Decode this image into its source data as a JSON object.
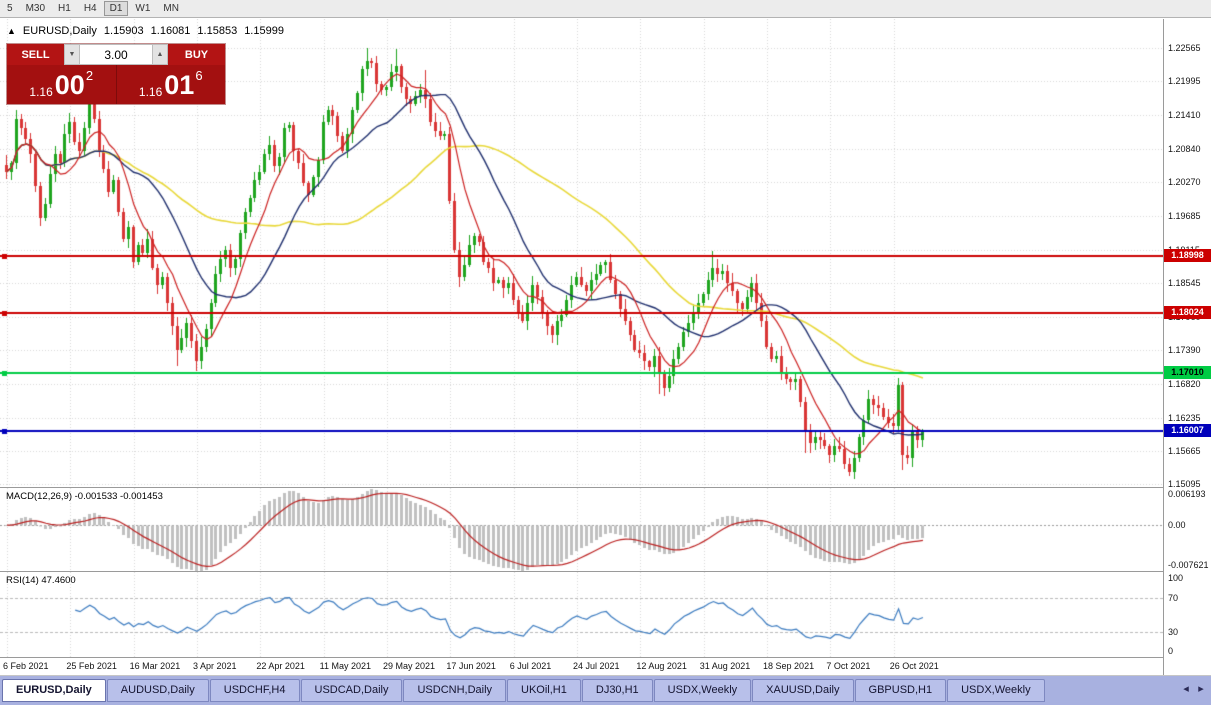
{
  "window": {
    "icon": "▲"
  },
  "toolbar": {
    "periods": [
      {
        "label": "5"
      },
      {
        "label": "M30"
      },
      {
        "label": "H1"
      },
      {
        "label": "H4"
      },
      {
        "label": "D1",
        "active": true
      },
      {
        "label": "W1"
      },
      {
        "label": "MN"
      }
    ]
  },
  "chart": {
    "symbol": "EURUSD,Daily",
    "open": "1.15903",
    "high": "1.16081",
    "low": "1.15853",
    "close": "1.15999"
  },
  "trade_panel": {
    "sell_label": "SELL",
    "buy_label": "BUY",
    "volume": "3.00",
    "volume_down_icon": "▼",
    "volume_up_icon": "▲",
    "sell_price": {
      "prefix": "1.16",
      "big": "00",
      "sup": "2"
    },
    "buy_price": {
      "prefix": "1.16",
      "big": "01",
      "sup": "6"
    }
  },
  "panels": {
    "macd_label": "MACD(12,26,9) -0.001533 -0.001453",
    "macd_axis": [
      "0.006193",
      "0.00",
      "-0.007621"
    ],
    "rsi_label": "RSI(14) 47.4600",
    "rsi_axis": [
      "100",
      "70",
      "30",
      "0"
    ]
  },
  "bottom_tabs": {
    "active_index": 0,
    "scroll_left_icon": "◂",
    "scroll_right_icon": "▸",
    "tabs": [
      "EURUSD,Daily",
      "AUDUSD,Daily",
      "USDCHF,H4",
      "USDCAD,Daily",
      "USDCNH,Daily",
      "UKOil,H1",
      "DJ30,H1",
      "USDX,Weekly",
      "XAUUSD,Daily",
      "GBPUSD,H1",
      "USDX,Weekly"
    ]
  },
  "chart_data": {
    "type": "candlestick",
    "symbol": "EURUSD",
    "timeframe": "Daily",
    "y_ticks": [
      "1.22565",
      "1.21995",
      "1.21410",
      "1.20840",
      "1.20270",
      "1.19685",
      "1.19115",
      "1.18545",
      "1.17960",
      "1.17390",
      "1.16820",
      "1.16235",
      "1.15665",
      "1.15095"
    ],
    "x_ticks": [
      "6 Feb 2021",
      "25 Feb 2021",
      "16 Mar 2021",
      "3 Apr 2021",
      "22 Apr 2021",
      "11 May 2021",
      "29 May 2021",
      "17 Jun 2021",
      "6 Jul 2021",
      "24 Jul 2021",
      "12 Aug 2021",
      "31 Aug 2021",
      "18 Sep 2021",
      "7 Oct 2021",
      "26 Oct 2021"
    ],
    "x_tick_step": 13,
    "price_range": [
      1.15051,
      1.23061
    ],
    "closes": [
      1.2045,
      1.206,
      1.2135,
      1.212,
      1.21,
      1.2075,
      1.202,
      1.1965,
      1.199,
      1.204,
      1.2075,
      1.206,
      1.211,
      1.213,
      1.2095,
      1.208,
      1.212,
      1.216,
      1.2135,
      1.208,
      1.205,
      1.201,
      1.203,
      1.1975,
      1.193,
      1.195,
      1.189,
      1.192,
      1.1905,
      1.193,
      1.188,
      1.185,
      1.1865,
      1.182,
      1.178,
      1.174,
      1.176,
      1.1785,
      1.1755,
      1.172,
      1.1745,
      1.1775,
      1.182,
      1.187,
      1.1895,
      1.191,
      1.188,
      1.1895,
      1.194,
      1.1975,
      1.2,
      1.203,
      1.2045,
      1.2075,
      1.209,
      1.2055,
      1.207,
      1.212,
      1.2125,
      1.208,
      1.206,
      1.2025,
      1.2005,
      1.2035,
      1.2065,
      1.213,
      1.215,
      1.214,
      1.2105,
      1.208,
      1.211,
      1.215,
      1.218,
      1.222,
      1.2235,
      1.223,
      1.2195,
      1.2185,
      1.219,
      1.2215,
      1.2225,
      1.219,
      1.217,
      1.216,
      1.2175,
      1.2185,
      1.217,
      1.213,
      1.2115,
      1.2105,
      1.211,
      1.1995,
      1.191,
      1.1865,
      1.1885,
      1.192,
      1.1935,
      1.1925,
      1.189,
      1.188,
      1.1855,
      1.186,
      1.1845,
      1.1855,
      1.1825,
      1.1805,
      1.179,
      1.182,
      1.185,
      1.183,
      1.1805,
      1.178,
      1.1765,
      1.179,
      1.18,
      1.1825,
      1.185,
      1.1865,
      1.185,
      1.184,
      1.186,
      1.187,
      1.1885,
      1.189,
      1.186,
      1.1835,
      1.181,
      1.179,
      1.1765,
      1.174,
      1.1735,
      1.172,
      1.171,
      1.173,
      1.17,
      1.1675,
      1.1695,
      1.1725,
      1.1745,
      1.177,
      1.1785,
      1.1805,
      1.182,
      1.1835,
      1.186,
      1.188,
      1.187,
      1.1875,
      1.1855,
      1.184,
      1.182,
      1.181,
      1.183,
      1.1855,
      1.182,
      1.179,
      1.1745,
      1.1725,
      1.173,
      1.17,
      1.169,
      1.1685,
      1.169,
      1.165,
      1.16,
      1.158,
      1.159,
      1.1585,
      1.1575,
      1.156,
      1.1575,
      1.157,
      1.1545,
      1.153,
      1.1555,
      1.159,
      1.162,
      1.1655,
      1.1645,
      1.164,
      1.1625,
      1.1615,
      1.161,
      1.168,
      1.156,
      1.1555,
      1.16,
      1.1585,
      1.16
    ],
    "wick_overrides": [
      {
        "i": 2,
        "high": 1.215
      },
      {
        "i": 7,
        "low": 1.1952
      },
      {
        "i": 17,
        "high": 1.2165
      },
      {
        "i": 35,
        "low": 1.1712
      },
      {
        "i": 39,
        "low": 1.1704
      },
      {
        "i": 74,
        "high": 1.2256
      },
      {
        "i": 80,
        "high": 1.2254
      },
      {
        "i": 86,
        "high": 1.2218
      },
      {
        "i": 93,
        "low": 1.1847
      },
      {
        "i": 112,
        "low": 1.1752
      },
      {
        "i": 134,
        "low": 1.1664
      },
      {
        "i": 145,
        "high": 1.1909
      },
      {
        "i": 164,
        "low": 1.1563
      },
      {
        "i": 173,
        "low": 1.1524
      },
      {
        "i": 183,
        "high": 1.1692
      },
      {
        "i": 184,
        "low": 1.1535
      },
      {
        "i": 186,
        "low": 1.154
      }
    ],
    "hlines": [
      {
        "value": 1.18998,
        "label": "1.18998",
        "color": "#cc0000",
        "text_color": "#ffffff"
      },
      {
        "value": 1.18024,
        "label": "1.18024",
        "color": "#cc0000",
        "text_color": "#ffffff"
      },
      {
        "value": 1.1701,
        "label": "1.17010",
        "color": "#00cc44",
        "text_color": "#000000"
      },
      {
        "value": 1.16007,
        "label": "1.16007",
        "color": "#0000bb",
        "text_color": "#ffffff"
      }
    ],
    "moving_averages": [
      {
        "period": 50,
        "color": "#e8d83a",
        "width": 1.6
      },
      {
        "period": 20,
        "color": "#20306e",
        "width": 1.4
      },
      {
        "period": 8,
        "color": "#cc2222",
        "width": 1.2
      }
    ],
    "colors": {
      "up": "#1fa51f",
      "down": "#d93636",
      "grid": "#d6d6d6",
      "macd_hist": "#c0c0c0",
      "macd_signal": "#bb2222",
      "rsi_line": "#3a7abf"
    },
    "macd": {
      "params": [
        12,
        26,
        9
      ],
      "value": -0.001533,
      "signal_value": -0.001453,
      "range": [
        -0.007621,
        0.006193
      ]
    },
    "rsi": {
      "period": 14,
      "value": 47.46,
      "levels": [
        70,
        30
      ],
      "range": [
        0,
        100
      ]
    }
  }
}
